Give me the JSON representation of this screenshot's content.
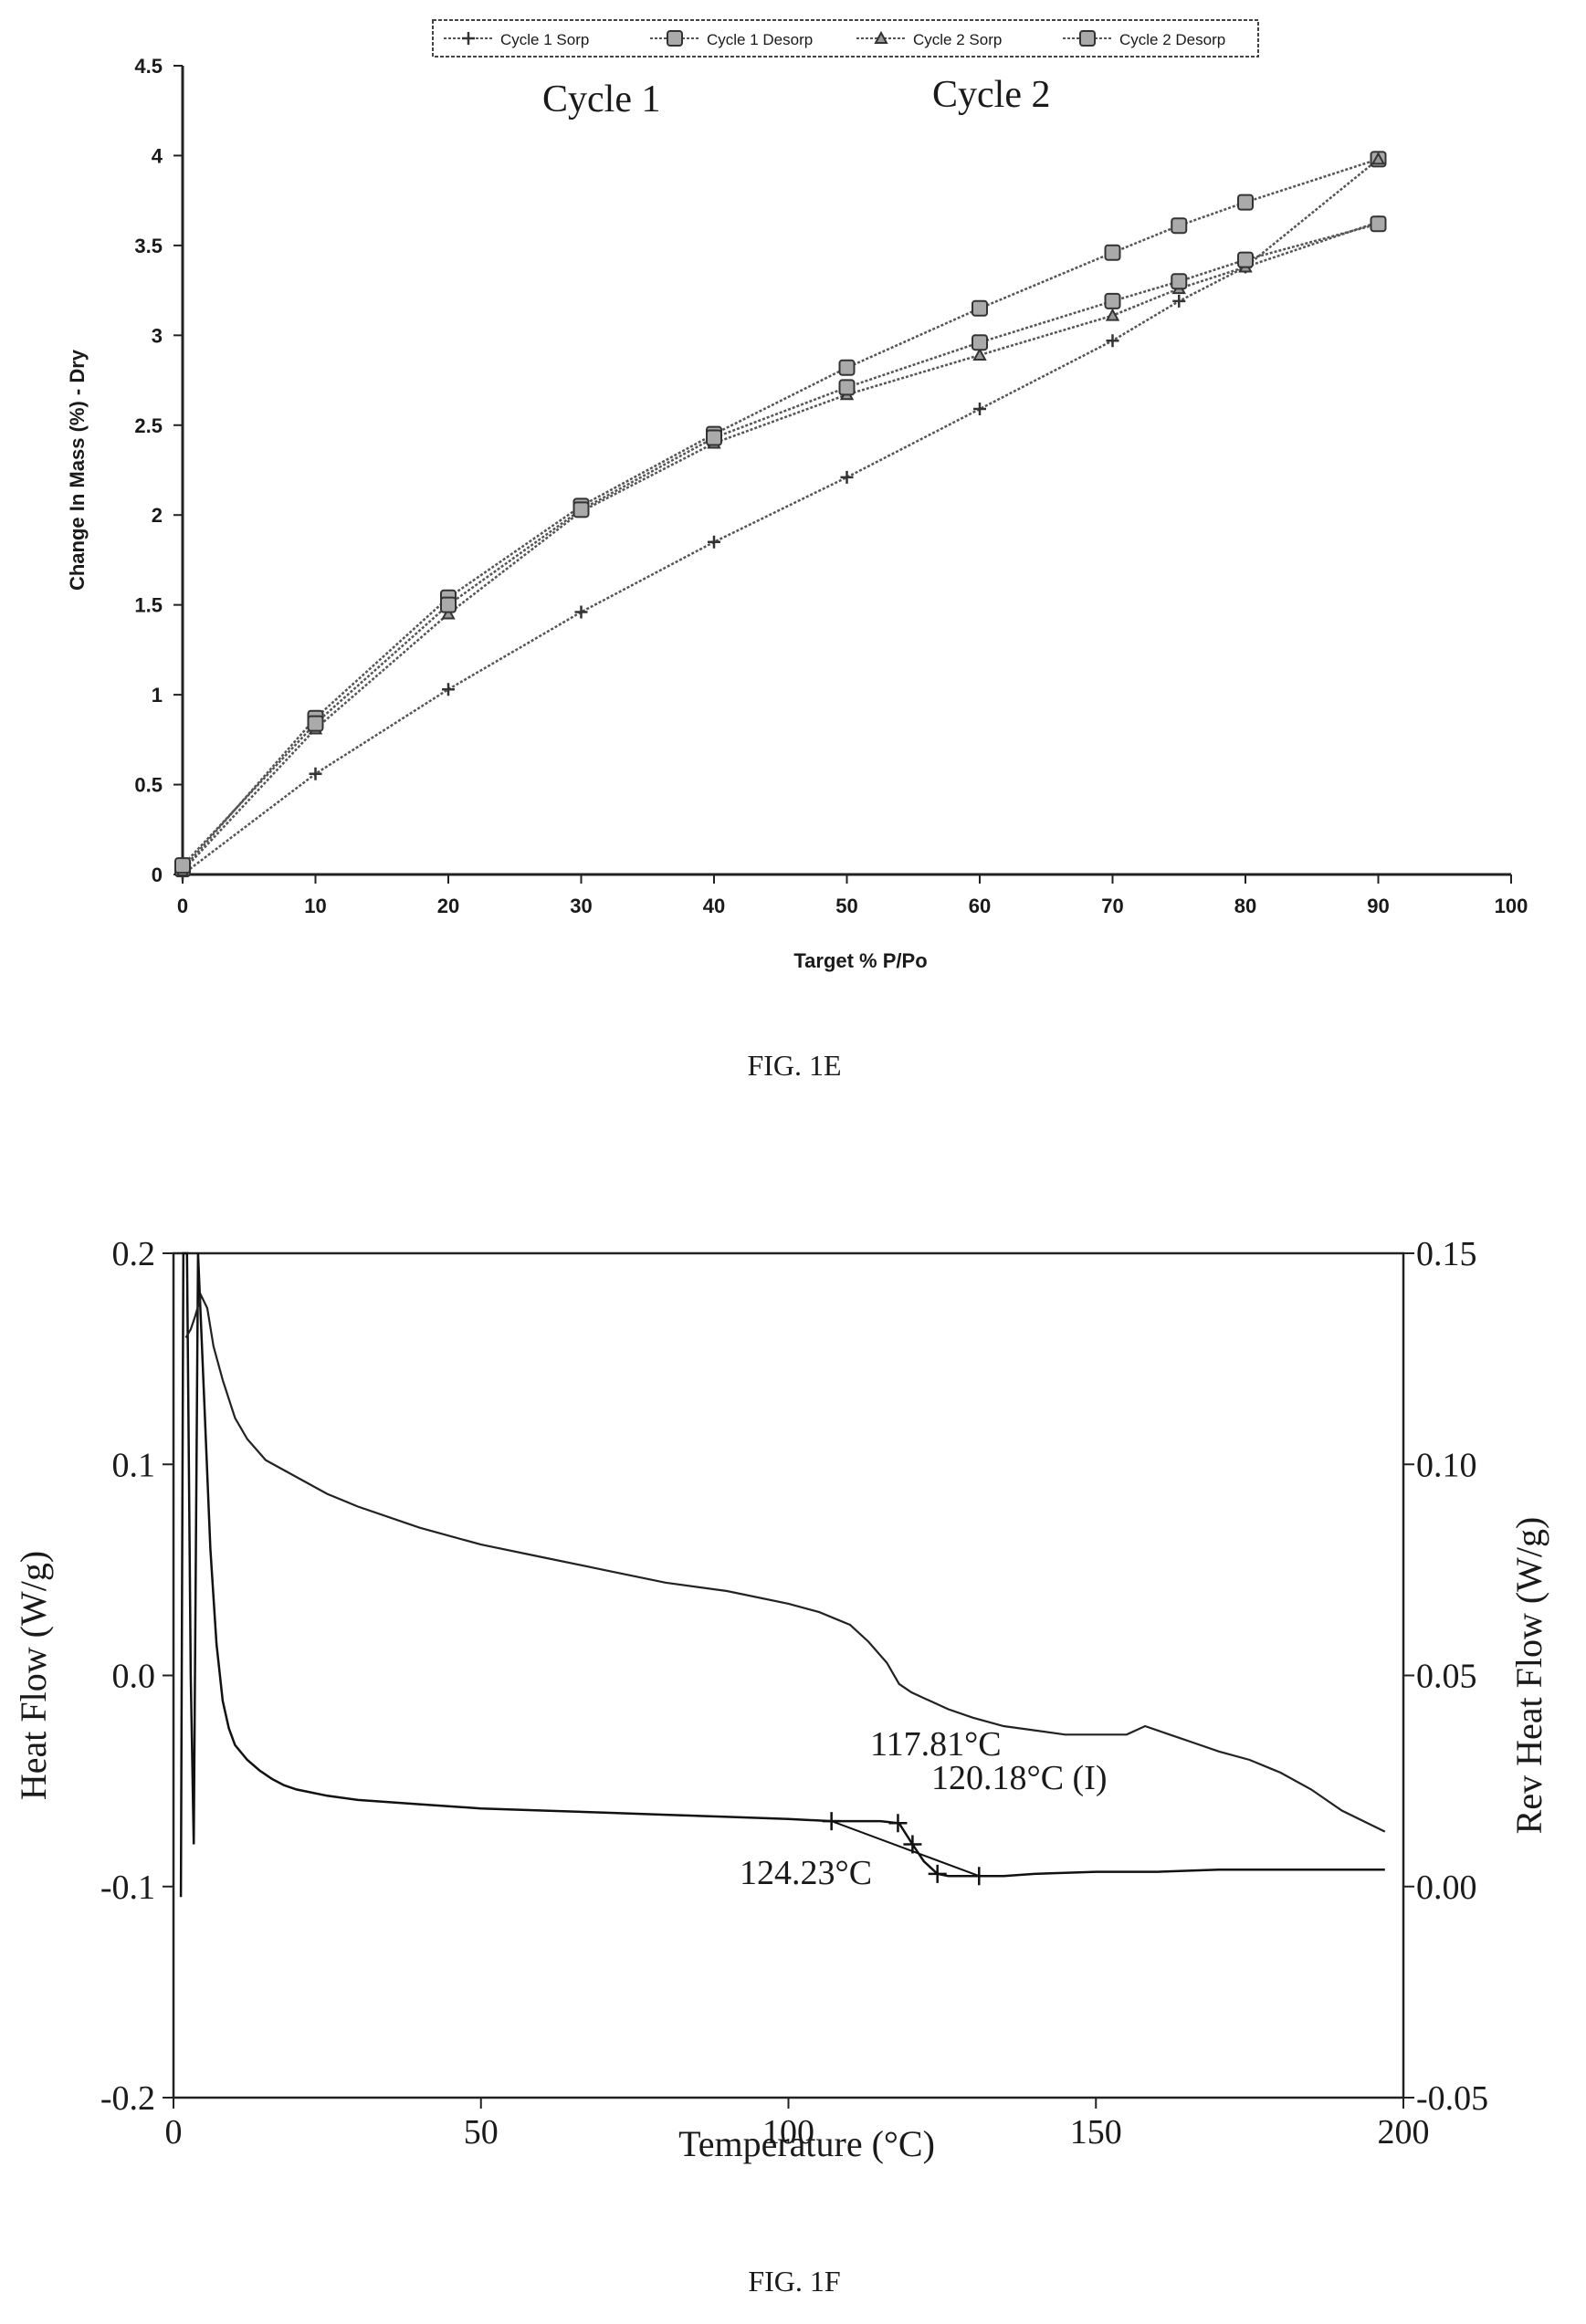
{
  "figures": {
    "e": {
      "caption": "FIG. 1E"
    },
    "f": {
      "caption": "FIG. 1F"
    }
  },
  "chart_data": [
    {
      "type": "line",
      "title": "",
      "xlabel": "Target % P/Po",
      "ylabel": "Change In Mass (%) - Dry",
      "xlim": [
        0,
        100
      ],
      "ylim": [
        0,
        4.5
      ],
      "x_ticks": [
        0,
        10,
        20,
        30,
        40,
        50,
        60,
        70,
        80,
        90,
        100
      ],
      "y_ticks": [
        0,
        0.5,
        1,
        1.5,
        2,
        2.5,
        3,
        3.5,
        4,
        4.5
      ],
      "x_tick_labels": [
        "0",
        "10",
        "20",
        "30",
        "40",
        "50",
        "60",
        "70",
        "80",
        "90",
        "100"
      ],
      "y_tick_labels": [
        "0",
        "0.5",
        "1",
        "1.5",
        "2",
        "2.5",
        "3",
        "3.5",
        "4",
        "4.5"
      ],
      "legend_position": "top",
      "grid": false,
      "annotations": [
        "Cycle 1",
        "Cycle 2"
      ],
      "series": [
        {
          "name": "Cycle 1 Sorp",
          "marker": "plus",
          "x": [
            0,
            10,
            20,
            30,
            40,
            50,
            60,
            70,
            75,
            80,
            90
          ],
          "y": [
            0,
            0.56,
            1.03,
            1.46,
            1.85,
            2.21,
            2.59,
            2.97,
            3.19,
            3.38,
            3.63
          ]
        },
        {
          "name": "Cycle 1 Desorp",
          "marker": "square",
          "x": [
            90,
            80,
            75,
            70,
            60,
            50,
            40,
            30,
            20,
            10,
            0
          ],
          "y": [
            3.98,
            3.74,
            3.61,
            3.46,
            3.15,
            2.82,
            2.45,
            2.05,
            1.54,
            0.87,
            0.03
          ]
        },
        {
          "name": "Cycle 2 Sorp",
          "marker": "triangle",
          "x": [
            0,
            10,
            20,
            30,
            40,
            50,
            60,
            70,
            75,
            80,
            90
          ],
          "y": [
            0.02,
            0.81,
            1.45,
            2.02,
            2.4,
            2.67,
            2.89,
            3.11,
            3.26,
            3.38,
            3.98
          ]
        },
        {
          "name": "Cycle 2 Desorp",
          "marker": "square",
          "x": [
            90,
            80,
            75,
            70,
            60,
            50,
            40,
            30,
            20,
            10,
            0
          ],
          "y": [
            3.62,
            3.42,
            3.3,
            3.19,
            2.96,
            2.71,
            2.43,
            2.03,
            1.5,
            0.84,
            0.05
          ]
        }
      ]
    },
    {
      "type": "line",
      "title": "",
      "xlabel": "Temperature (°C)",
      "ylabel": "Heat Flow (W/g)",
      "y2label": "Rev Heat Flow (W/g)",
      "xlim": [
        0,
        200
      ],
      "ylim": [
        -0.2,
        0.2
      ],
      "y2lim": [
        -0.05,
        0.15
      ],
      "x_ticks": [
        0,
        50,
        100,
        150,
        200
      ],
      "y_ticks": [
        -0.2,
        -0.1,
        0.0,
        0.1,
        0.2
      ],
      "y2_ticks": [
        -0.05,
        0.0,
        0.05,
        0.1,
        0.15
      ],
      "x_tick_labels": [
        "0",
        "50",
        "100",
        "150",
        "200"
      ],
      "y_tick_labels": [
        "-0.2",
        "-0.1",
        "0.0",
        "0.1",
        "0.2"
      ],
      "y2_tick_labels": [
        "-0.05",
        "0.00",
        "0.05",
        "0.10",
        "0.15"
      ],
      "grid": false,
      "annotations": [
        {
          "text": "117.81°C",
          "x": 117.81
        },
        {
          "text": "120.18°C (I)",
          "x": 120.18
        },
        {
          "text": "124.23°C",
          "x": 124.23
        }
      ],
      "series": [
        {
          "name": "",
          "axis": "left",
          "x": [
            1.2,
            1.6,
            2.0,
            2.2,
            2.8,
            3.3,
            4.0,
            5.0,
            6.0,
            7.0,
            8.0,
            9.0,
            10,
            12,
            14,
            16,
            18,
            20,
            25,
            30,
            40,
            50,
            60,
            70,
            80,
            90,
            100,
            107,
            115,
            118,
            120.18,
            122,
            124.23,
            126,
            131,
            135,
            140,
            150,
            160,
            170,
            180,
            190,
            197
          ],
          "y": [
            -0.105,
            0.2,
            0.2,
            0.2,
            0.0,
            -0.08,
            0.2,
            0.13,
            0.06,
            0.015,
            -0.012,
            -0.025,
            -0.033,
            -0.04,
            -0.045,
            -0.049,
            -0.052,
            -0.054,
            -0.057,
            -0.059,
            -0.061,
            -0.063,
            -0.064,
            -0.065,
            -0.066,
            -0.067,
            -0.068,
            -0.069,
            -0.069,
            -0.07,
            -0.08,
            -0.088,
            -0.094,
            -0.095,
            -0.095,
            -0.095,
            -0.094,
            -0.093,
            -0.093,
            -0.092,
            -0.092,
            -0.092,
            -0.092
          ]
        },
        {
          "name": "",
          "axis": "right",
          "x": [
            2.0,
            2.8,
            3.5,
            4.5,
            5.5,
            6.5,
            8,
            10,
            12,
            15,
            20,
            25,
            30,
            40,
            50,
            60,
            70,
            80,
            90,
            100,
            105,
            110,
            113,
            116,
            118,
            120,
            123,
            126,
            130,
            135,
            140,
            145,
            150,
            155,
            158,
            162,
            166,
            170,
            175,
            180,
            185,
            190,
            197
          ],
          "y": [
            0.13,
            0.132,
            0.135,
            0.14,
            0.137,
            0.128,
            0.12,
            0.111,
            0.106,
            0.101,
            0.097,
            0.093,
            0.09,
            0.085,
            0.081,
            0.078,
            0.075,
            0.072,
            0.07,
            0.067,
            0.065,
            0.062,
            0.058,
            0.053,
            0.048,
            0.046,
            0.044,
            0.042,
            0.04,
            0.038,
            0.037,
            0.036,
            0.036,
            0.036,
            0.038,
            0.036,
            0.034,
            0.032,
            0.03,
            0.027,
            0.023,
            0.018,
            0.013
          ]
        }
      ]
    }
  ]
}
